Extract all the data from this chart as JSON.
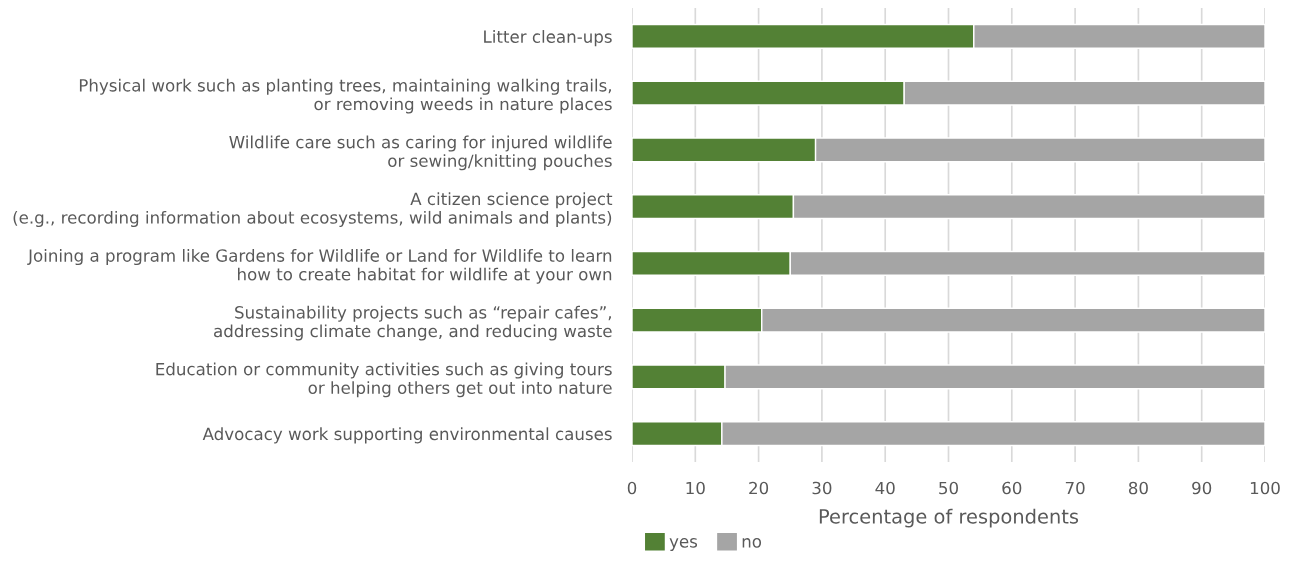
{
  "chart_data": {
    "type": "bar",
    "orientation": "horizontal",
    "stacked": true,
    "categories": [
      "Litter clean-ups",
      "Physical work such as planting trees, maintaining walking trails,\nor removing weeds in nature places",
      "Wildlife care such as caring for injured wildlife\nor sewing/knitting pouches",
      "A citizen science project\n(e.g., recording information about ecosystems, wild animals and plants)",
      "Joining a program like Gardens for Wildlife or Land for Wildlife to learn\nhow to create habitat for wildlife at your own",
      "Sustainability projects such as “repair cafes”,\naddressing climate change, and reducing waste",
      "Education or community activities such as giving tours\nor helping others get out into nature",
      "Advocacy work supporting environmental causes"
    ],
    "series": [
      {
        "name": "yes",
        "color": "#538135",
        "values": [
          54,
          43,
          29,
          25.5,
          25,
          20.5,
          14.7,
          14.2
        ]
      },
      {
        "name": "no",
        "color": "#a5a5a5",
        "values": [
          46,
          57,
          71,
          74.5,
          75,
          79.5,
          85.3,
          85.8
        ]
      }
    ],
    "xlabel": "Percentage of respondents",
    "xlim": [
      0,
      100
    ],
    "xticks": [
      0,
      10,
      20,
      30,
      40,
      50,
      60,
      70,
      80,
      90,
      100
    ],
    "grid": "x",
    "legend": "bottom"
  }
}
